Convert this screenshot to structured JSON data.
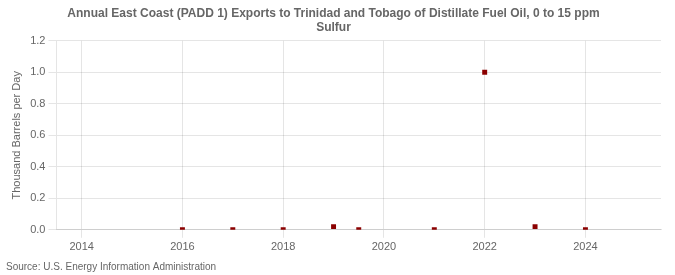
{
  "chart_data": {
    "type": "scatter",
    "title": "Annual East Coast (PADD 1) Exports to Trinidad and Tobago of Distillate Fuel Oil, 0 to 15 ppm\nSulfur",
    "ylabel": "Thousand Barrels per Day",
    "source": "Source: U.S. Energy Information Administration",
    "x": [
      2016,
      2017,
      2018,
      2019,
      2019.5,
      2021,
      2022,
      2023,
      2024
    ],
    "values": [
      0.0,
      0.0,
      0.0,
      0.02,
      0.0,
      0.0,
      1.0,
      0.02,
      0.0
    ],
    "color": "#8b0000",
    "marker": "square",
    "xlim": [
      2013.5,
      2025.5
    ],
    "xticks": [
      2014,
      2016,
      2018,
      2020,
      2022,
      2024
    ],
    "ylim": [
      0.0,
      1.2
    ],
    "yticks": [
      {
        "value": 0.0,
        "label": "0.0"
      },
      0.2,
      0.4,
      0.6,
      0.8,
      {
        "value": 1.0,
        "label": "1.0"
      },
      1.2
    ],
    "grid": true
  }
}
